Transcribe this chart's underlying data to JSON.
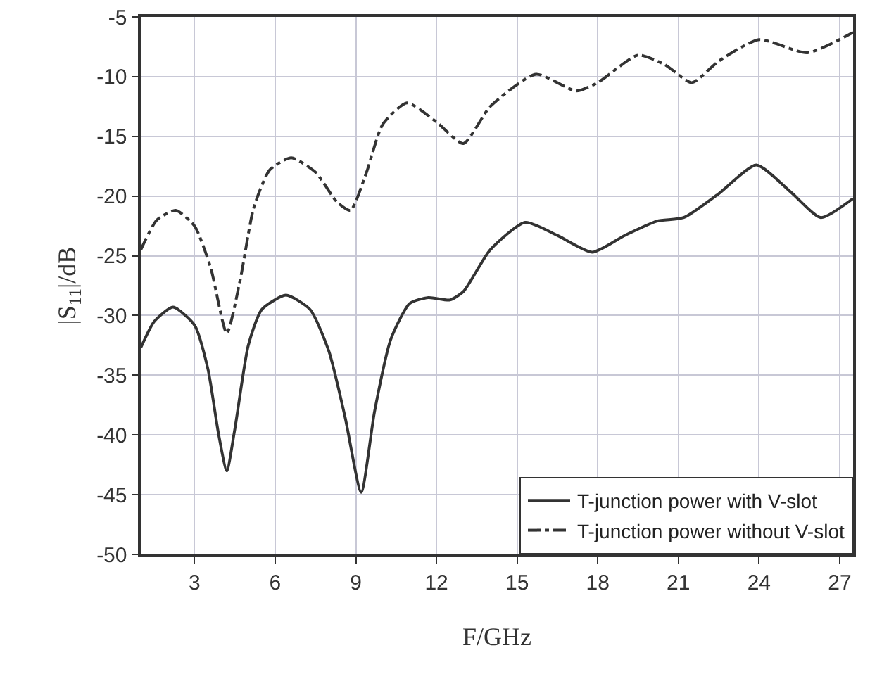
{
  "chart_data": {
    "type": "line",
    "xlabel": "F/GHz",
    "ylabel": "|S$_{11}$|/dB",
    "xlim": [
      1,
      27.5
    ],
    "xticks": [
      3,
      6,
      9,
      12,
      15,
      18,
      21,
      24,
      27
    ],
    "ylim": [
      -50,
      -5
    ],
    "yticks": [
      -50,
      -45,
      -40,
      -35,
      -30,
      -25,
      -20,
      -15,
      -10,
      -5
    ],
    "grid": true,
    "legend": "bottom right",
    "marker": "none",
    "series": [
      {
        "name": "T-junction power with V-slot",
        "color": "#333333",
        "line_style": "solid",
        "x": [
          1,
          1.5,
          2.2,
          3,
          3.5,
          3.9,
          4.2,
          4.5,
          5,
          5.5,
          6.4,
          7.3,
          8,
          8.6,
          9.2,
          9.7,
          10.3,
          11,
          11.7,
          12.5,
          13,
          14,
          15.3,
          16.5,
          17.8,
          19,
          20.2,
          21.2,
          22.5,
          23.9,
          25.2,
          26.3,
          27.5
        ],
        "values": [
          -32.7,
          -30.5,
          -29.3,
          -30.8,
          -34.5,
          -40,
          -43,
          -39.5,
          -32.5,
          -29.5,
          -28.3,
          -29.5,
          -33,
          -38.5,
          -44.8,
          -38,
          -32,
          -29,
          -28.5,
          -28.7,
          -28,
          -24.5,
          -22.2,
          -23.3,
          -24.7,
          -23.3,
          -22.1,
          -21.8,
          -19.8,
          -17.4,
          -19.7,
          -21.8,
          -20.2
        ]
      },
      {
        "name": "T-junction power without V-slot",
        "color": "#333333",
        "line_style": "dashdot",
        "x": [
          1,
          1.6,
          2.3,
          3,
          3.6,
          4.2,
          4.7,
          5.2,
          5.8,
          6.6,
          7.5,
          8.3,
          8.8,
          9.4,
          10,
          10.9,
          12,
          13,
          14,
          15.7,
          17.2,
          18,
          19.5,
          20.5,
          21.5,
          22.5,
          24,
          25.8,
          27.5
        ],
        "values": [
          -24.5,
          -22,
          -21.2,
          -22.5,
          -26,
          -31.5,
          -27,
          -21,
          -17.8,
          -16.8,
          -18,
          -20.5,
          -21.2,
          -18,
          -14,
          -12.2,
          -13.8,
          -15.6,
          -12.5,
          -9.8,
          -11.2,
          -10.5,
          -8.2,
          -9,
          -10.5,
          -8.7,
          -6.9,
          -8,
          -6.3
        ]
      }
    ]
  }
}
